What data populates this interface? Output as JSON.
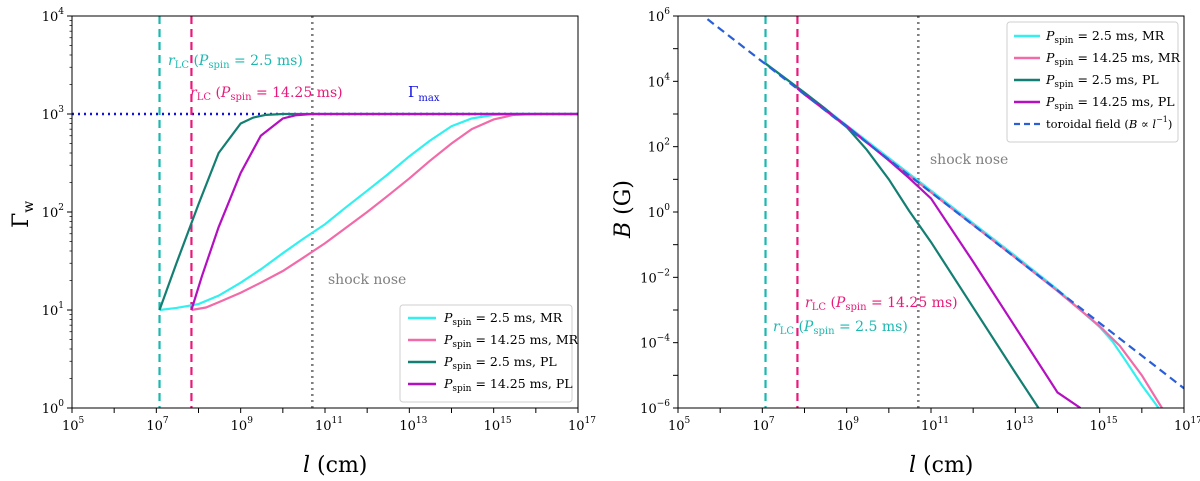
{
  "colors": {
    "cyan": "#33f0f0",
    "pink": "#f26aa8",
    "teal": "#137f72",
    "purple": "#b40fc0",
    "darkcyan": "#1cb8b0",
    "magenta": "#e8197a",
    "blue": "#1010e0",
    "gray": "#808080",
    "toroidal": "#2a5fd8"
  },
  "chart_data": [
    {
      "type": "line",
      "title": "",
      "xlabel": "l (cm)",
      "ylabel": "Γw",
      "xscale": "log",
      "yscale": "log",
      "xlim": [
        100000.0,
        1e+17
      ],
      "ylim": [
        1,
        10000.0
      ],
      "xticks": [
        {
          "base": "10",
          "exp": "5",
          "value": 100000.0
        },
        {
          "base": "10",
          "exp": "7",
          "value": 10000000.0
        },
        {
          "base": "10",
          "exp": "9",
          "value": 1000000000.0
        },
        {
          "base": "10",
          "exp": "11",
          "value": 100000000000.0
        },
        {
          "base": "10",
          "exp": "13",
          "value": 10000000000000.0
        },
        {
          "base": "10",
          "exp": "15",
          "value": 1000000000000000.0
        },
        {
          "base": "10",
          "exp": "17",
          "value": 1e+17
        }
      ],
      "yticks": [
        {
          "base": "10",
          "exp": "0",
          "value": 1
        },
        {
          "base": "10",
          "exp": "1",
          "value": 10
        },
        {
          "base": "10",
          "exp": "2",
          "value": 100
        },
        {
          "base": "10",
          "exp": "3",
          "value": 1000
        },
        {
          "base": "10",
          "exp": "4",
          "value": 10000
        }
      ],
      "legend_position": "lower-right",
      "series": [
        {
          "name": "P_spin = 2.5 ms, MR",
          "color": "cyan",
          "x": [
            11900000.0,
            30000000.0,
            100000000.0,
            300000000.0,
            1000000000.0,
            3000000000.0,
            10000000000.0,
            30000000000.0,
            100000000000.0,
            300000000000.0,
            1000000000000.0,
            3000000000000.0,
            10000000000000.0,
            30000000000000.0,
            100000000000000.0,
            300000000000000.0,
            1000000000000000.0,
            3000000000000000.0,
            1e+16,
            1e+17
          ],
          "y": [
            10,
            10.5,
            11.5,
            14,
            19,
            26,
            38,
            53,
            75,
            110,
            165,
            240,
            370,
            530,
            750,
            900,
            980,
            1000,
            1000,
            1000
          ]
        },
        {
          "name": "P_spin = 14.25 ms, MR",
          "color": "pink",
          "x": [
            68000000.0,
            150000000.0,
            300000000.0,
            1000000000.0,
            3000000000.0,
            10000000000.0,
            30000000000.0,
            100000000000.0,
            300000000000.0,
            1000000000000.0,
            3000000000000.0,
            10000000000000.0,
            30000000000000.0,
            100000000000000.0,
            300000000000000.0,
            1000000000000000.0,
            3000000000000000.0,
            1e+16,
            1e+17
          ],
          "y": [
            10,
            10.6,
            12,
            15,
            19,
            25,
            34,
            48,
            68,
            100,
            145,
            220,
            330,
            500,
            700,
            880,
            980,
            1000,
            1000
          ]
        },
        {
          "name": "P_spin = 2.5 ms, PL",
          "color": "teal",
          "x": [
            11900000.0,
            30000000.0,
            100000000.0,
            300000000.0,
            1000000000.0,
            2000000000.0,
            4000000000.0,
            10000000000.0,
            30000000000.0,
            100000000000.0,
            1e+17
          ],
          "y": [
            10,
            30,
            120,
            400,
            800,
            920,
            980,
            1000,
            1000,
            1000,
            1000
          ]
        },
        {
          "name": "P_spin = 14.25 ms, PL",
          "color": "purple",
          "x": [
            68000000.0,
            120000000.0,
            300000000.0,
            1000000000.0,
            3000000000.0,
            10000000000.0,
            20000000000.0,
            50000000000.0,
            100000000000.0,
            1e+17
          ],
          "y": [
            10,
            22,
            70,
            250,
            600,
            900,
            970,
            1000,
            1000,
            1000
          ]
        }
      ],
      "reference_lines": [
        {
          "kind": "horizontal",
          "value": 1000,
          "color": "blue",
          "style": "dotted",
          "label": "Γmax"
        },
        {
          "kind": "vertical",
          "value": 11900000.0,
          "color": "darkcyan",
          "style": "dashed"
        },
        {
          "kind": "vertical",
          "value": 68000000.0,
          "color": "magenta",
          "style": "dashed"
        },
        {
          "kind": "vertical",
          "value": 50000000000.0,
          "color": "gray",
          "style": "dotted"
        }
      ],
      "annotations": {
        "rlc_25": "rLC (Pspin = 2.5 ms)",
        "rlc_1425": "rLC (Pspin = 14.25 ms)",
        "gamma_max": "Γmax",
        "shock_nose": "shock nose"
      }
    },
    {
      "type": "line",
      "title": "",
      "xlabel": "l (cm)",
      "ylabel": "B (G)",
      "xscale": "log",
      "yscale": "log",
      "xlim": [
        100000.0,
        1e+17
      ],
      "ylim": [
        1e-06,
        1000000.0
      ],
      "xticks": [
        {
          "base": "10",
          "exp": "5",
          "value": 100000.0
        },
        {
          "base": "10",
          "exp": "7",
          "value": 10000000.0
        },
        {
          "base": "10",
          "exp": "9",
          "value": 1000000000.0
        },
        {
          "base": "10",
          "exp": "11",
          "value": 100000000000.0
        },
        {
          "base": "10",
          "exp": "13",
          "value": 10000000000000.0
        },
        {
          "base": "10",
          "exp": "15",
          "value": 1000000000000000.0
        },
        {
          "base": "10",
          "exp": "17",
          "value": 1e+17
        }
      ],
      "yticks": [
        {
          "base": "10",
          "exp": "−6",
          "value": 1e-06
        },
        {
          "base": "10",
          "exp": "−4",
          "value": 0.0001
        },
        {
          "base": "10",
          "exp": "−2",
          "value": 0.01
        },
        {
          "base": "10",
          "exp": "0",
          "value": 1
        },
        {
          "base": "10",
          "exp": "2",
          "value": 100
        },
        {
          "base": "10",
          "exp": "4",
          "value": 10000.0
        },
        {
          "base": "10",
          "exp": "6",
          "value": 1000000.0
        }
      ],
      "legend_position": "upper-right",
      "series": [
        {
          "name": "P_spin = 2.5 ms, MR",
          "color": "cyan",
          "x": [
            11900000.0,
            100000000.0,
            1000000000.0,
            10000000000.0,
            100000000000.0,
            1000000000000.0,
            10000000000000.0,
            100000000000000.0,
            1000000000000000.0,
            2000000000000000.0,
            4000000000000000.0,
            1e+16,
            2.5e+16
          ],
          "y": [
            35000.0,
            4500.0,
            450.0,
            45,
            4.5,
            0.45,
            0.045,
            0.0042,
            0.0003,
            0.00011,
            3e-05,
            5e-06,
            1e-06
          ]
        },
        {
          "name": "P_spin = 14.25 ms, MR",
          "color": "pink",
          "x": [
            68000000.0,
            100000000.0,
            1000000000.0,
            10000000000.0,
            100000000000.0,
            1000000000000.0,
            10000000000000.0,
            100000000000000.0,
            1000000000000000.0,
            3000000000000000.0,
            1e+16,
            3e+16
          ],
          "y": [
            6000.0,
            4000.0,
            400.0,
            40,
            4,
            0.4,
            0.04,
            0.0038,
            0.00032,
            8e-05,
            1e-05,
            1e-06
          ]
        },
        {
          "name": "P_spin = 2.5 ms, PL",
          "color": "teal",
          "x": [
            11900000.0,
            100000000.0,
            300000000.0,
            1000000000.0,
            3000000000.0,
            10000000000.0,
            30000000000.0,
            100000000000.0,
            1000000000000.0,
            10000000000000.0,
            100000000000000.0,
            300000000000000.0
          ],
          "y": [
            35000.0,
            4500.0,
            1500.0,
            400,
            80,
            10,
            1.1,
            0.12,
            0.0012,
            1.2e-05,
            1.3e-07,
            1e-06
          ]
        },
        {
          "name": "P_spin = 14.25 ms, PL",
          "color": "purple",
          "x": [
            68000000.0,
            100000000.0,
            1000000000.0,
            10000000000.0,
            30000000000.0,
            100000000000.0,
            1000000000000.0,
            10000000000000.0,
            100000000000000.0,
            350000000000000.0
          ],
          "y": [
            6000.0,
            4000.0,
            430,
            38,
            11,
            2.6,
            0.03,
            0.0003,
            3e-06,
            1e-06
          ]
        },
        {
          "name": "toroidal field (B ∝ l−1)",
          "color": "toroidal",
          "style": "dashed",
          "x": [
            500000.0,
            1e+17
          ],
          "y": [
            800000.0,
            4e-06
          ]
        }
      ],
      "reference_lines": [
        {
          "kind": "vertical",
          "value": 11900000.0,
          "color": "darkcyan",
          "style": "dashed"
        },
        {
          "kind": "vertical",
          "value": 68000000.0,
          "color": "magenta",
          "style": "dashed"
        },
        {
          "kind": "vertical",
          "value": 50000000000.0,
          "color": "gray",
          "style": "dotted"
        }
      ],
      "annotations": {
        "rlc_25": "rLC (Pspin = 2.5 ms)",
        "rlc_1425": "rLC (Pspin = 14.25 ms)",
        "shock_nose": "shock nose"
      }
    }
  ]
}
